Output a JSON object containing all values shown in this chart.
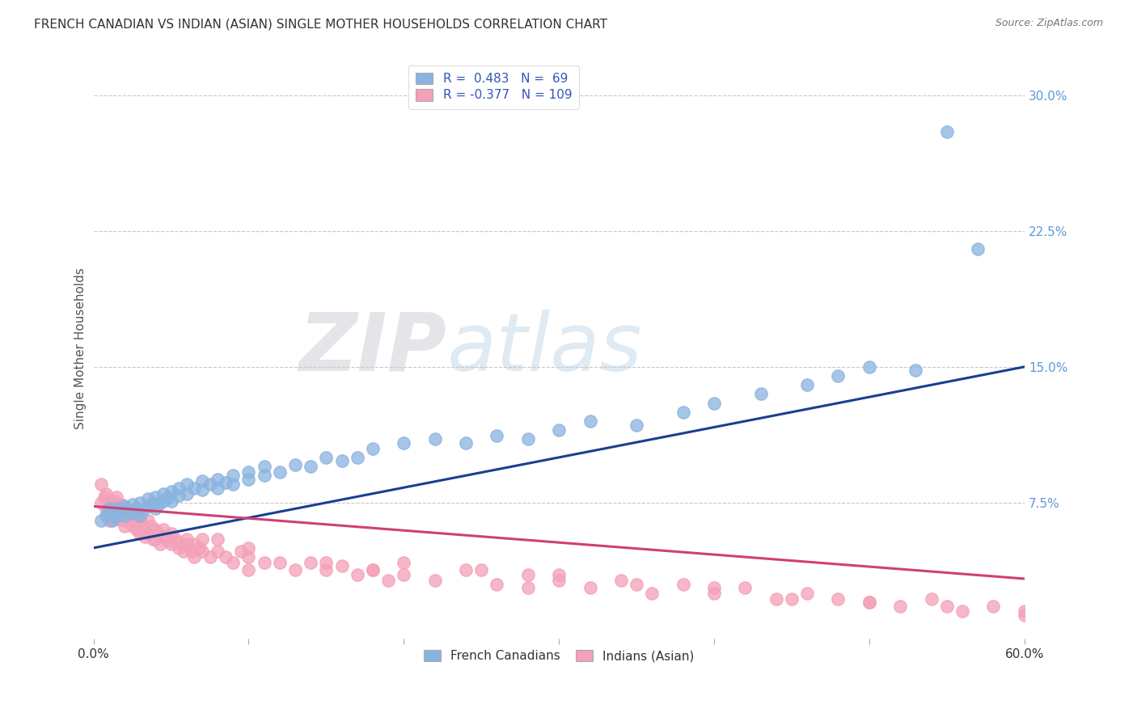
{
  "title": "FRENCH CANADIAN VS INDIAN (ASIAN) SINGLE MOTHER HOUSEHOLDS CORRELATION CHART",
  "source": "Source: ZipAtlas.com",
  "ylabel": "Single Mother Households",
  "xlim": [
    0.0,
    0.6
  ],
  "ylim": [
    0.0,
    0.32
  ],
  "ytick_positions": [
    0.0,
    0.075,
    0.15,
    0.225,
    0.3
  ],
  "ytick_labels": [
    "",
    "7.5%",
    "15.0%",
    "22.5%",
    "30.0%"
  ],
  "watermark": "ZIPatlas",
  "blue_color": "#8ab4e0",
  "pink_color": "#f4a0b8",
  "blue_line_color": "#1a3f8f",
  "pink_line_color": "#d04070",
  "grid_color": "#c8c8c8",
  "blue_line_x0": 0.0,
  "blue_line_y0": 0.05,
  "blue_line_x1": 0.6,
  "blue_line_y1": 0.15,
  "pink_line_x0": 0.0,
  "pink_line_y0": 0.073,
  "pink_line_x1": 0.6,
  "pink_line_y1": 0.033,
  "blue_x": [
    0.005,
    0.008,
    0.01,
    0.01,
    0.012,
    0.015,
    0.015,
    0.018,
    0.02,
    0.02,
    0.022,
    0.025,
    0.025,
    0.028,
    0.03,
    0.03,
    0.032,
    0.035,
    0.035,
    0.038,
    0.04,
    0.04,
    0.042,
    0.045,
    0.045,
    0.048,
    0.05,
    0.05,
    0.055,
    0.055,
    0.06,
    0.06,
    0.065,
    0.07,
    0.07,
    0.075,
    0.08,
    0.08,
    0.085,
    0.09,
    0.09,
    0.1,
    0.1,
    0.11,
    0.11,
    0.12,
    0.13,
    0.14,
    0.15,
    0.16,
    0.17,
    0.18,
    0.2,
    0.22,
    0.24,
    0.26,
    0.28,
    0.3,
    0.32,
    0.35,
    0.38,
    0.4,
    0.43,
    0.46,
    0.48,
    0.5,
    0.53,
    0.55,
    0.57
  ],
  "blue_y": [
    0.065,
    0.068,
    0.07,
    0.072,
    0.065,
    0.068,
    0.072,
    0.07,
    0.068,
    0.073,
    0.071,
    0.069,
    0.074,
    0.072,
    0.068,
    0.075,
    0.071,
    0.073,
    0.077,
    0.075,
    0.072,
    0.078,
    0.074,
    0.076,
    0.08,
    0.078,
    0.076,
    0.081,
    0.079,
    0.083,
    0.08,
    0.085,
    0.083,
    0.082,
    0.087,
    0.085,
    0.083,
    0.088,
    0.086,
    0.085,
    0.09,
    0.088,
    0.092,
    0.09,
    0.095,
    0.092,
    0.096,
    0.095,
    0.1,
    0.098,
    0.1,
    0.105,
    0.108,
    0.11,
    0.108,
    0.112,
    0.11,
    0.115,
    0.12,
    0.118,
    0.125,
    0.13,
    0.135,
    0.14,
    0.145,
    0.15,
    0.148,
    0.28,
    0.215
  ],
  "pink_x": [
    0.005,
    0.005,
    0.007,
    0.008,
    0.008,
    0.01,
    0.01,
    0.01,
    0.012,
    0.012,
    0.013,
    0.015,
    0.015,
    0.015,
    0.017,
    0.018,
    0.018,
    0.02,
    0.02,
    0.02,
    0.02,
    0.022,
    0.022,
    0.025,
    0.025,
    0.025,
    0.027,
    0.028,
    0.03,
    0.03,
    0.03,
    0.032,
    0.033,
    0.035,
    0.035,
    0.037,
    0.038,
    0.04,
    0.04,
    0.042,
    0.043,
    0.045,
    0.045,
    0.048,
    0.05,
    0.05,
    0.053,
    0.055,
    0.055,
    0.058,
    0.06,
    0.06,
    0.063,
    0.065,
    0.065,
    0.068,
    0.07,
    0.07,
    0.075,
    0.08,
    0.085,
    0.09,
    0.095,
    0.1,
    0.1,
    0.11,
    0.12,
    0.13,
    0.14,
    0.15,
    0.16,
    0.17,
    0.18,
    0.19,
    0.2,
    0.22,
    0.24,
    0.26,
    0.28,
    0.3,
    0.32,
    0.34,
    0.36,
    0.38,
    0.4,
    0.42,
    0.44,
    0.46,
    0.48,
    0.5,
    0.52,
    0.54,
    0.56,
    0.58,
    0.6,
    0.15,
    0.25,
    0.35,
    0.45,
    0.55,
    0.1,
    0.2,
    0.3,
    0.4,
    0.5,
    0.6,
    0.08,
    0.18,
    0.28
  ],
  "pink_y": [
    0.075,
    0.085,
    0.078,
    0.08,
    0.072,
    0.075,
    0.07,
    0.065,
    0.073,
    0.068,
    0.076,
    0.072,
    0.066,
    0.078,
    0.07,
    0.074,
    0.068,
    0.072,
    0.065,
    0.068,
    0.062,
    0.066,
    0.07,
    0.065,
    0.068,
    0.062,
    0.066,
    0.06,
    0.065,
    0.068,
    0.058,
    0.062,
    0.056,
    0.065,
    0.058,
    0.062,
    0.055,
    0.06,
    0.055,
    0.058,
    0.052,
    0.056,
    0.06,
    0.054,
    0.058,
    0.052,
    0.055,
    0.05,
    0.053,
    0.048,
    0.052,
    0.055,
    0.048,
    0.052,
    0.045,
    0.05,
    0.048,
    0.055,
    0.045,
    0.048,
    0.045,
    0.042,
    0.048,
    0.045,
    0.038,
    0.042,
    0.042,
    0.038,
    0.042,
    0.038,
    0.04,
    0.035,
    0.038,
    0.032,
    0.035,
    0.032,
    0.038,
    0.03,
    0.035,
    0.032,
    0.028,
    0.032,
    0.025,
    0.03,
    0.025,
    0.028,
    0.022,
    0.025,
    0.022,
    0.02,
    0.018,
    0.022,
    0.015,
    0.018,
    0.015,
    0.042,
    0.038,
    0.03,
    0.022,
    0.018,
    0.05,
    0.042,
    0.035,
    0.028,
    0.02,
    0.013,
    0.055,
    0.038,
    0.028
  ],
  "figsize": [
    14.06,
    8.92
  ],
  "dpi": 100
}
